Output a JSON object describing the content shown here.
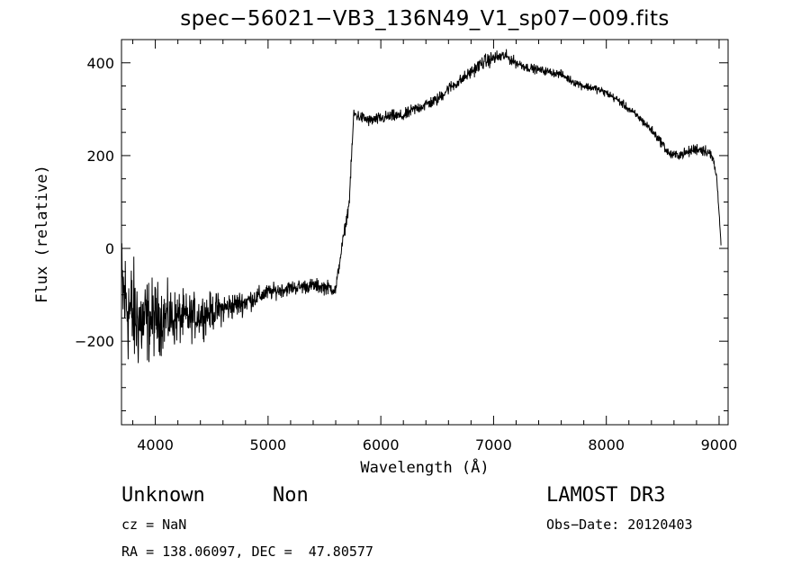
{
  "chart_data": {
    "type": "line",
    "title": "spec−56021−VB3_136N49_V1_sp07−009.fits",
    "xlabel": "Wavelength (Å)",
    "ylabel": "Flux (relative)",
    "xlim": [
      3700,
      9080
    ],
    "ylim": [
      -380,
      450
    ],
    "x_ticks": [
      4000,
      5000,
      6000,
      7000,
      8000,
      9000
    ],
    "y_ticks": [
      -200,
      0,
      200,
      400
    ],
    "grid": false,
    "series": [
      {
        "x": [
          3700,
          3780,
          3880,
          4000,
          4150,
          4300,
          4450,
          4600,
          4800,
          5000,
          5200,
          5400,
          5550,
          5600,
          5640,
          5680,
          5720,
          5760,
          5800,
          5900,
          6000,
          6100,
          6200,
          6300,
          6400,
          6500,
          6600,
          6700,
          6800,
          6900,
          7000,
          7100,
          7200,
          7300,
          7400,
          7500,
          7600,
          7700,
          7800,
          7900,
          8000,
          8100,
          8200,
          8300,
          8400,
          8500,
          8550,
          8600,
          8700,
          8800,
          8900,
          8950,
          8980,
          9000,
          9020
        ],
        "y": [
          -90,
          -140,
          -160,
          -150,
          -150,
          -150,
          -140,
          -130,
          -115,
          -95,
          -85,
          -80,
          -85,
          -90,
          -20,
          40,
          100,
          290,
          285,
          275,
          280,
          285,
          285,
          300,
          310,
          320,
          345,
          360,
          380,
          400,
          410,
          415,
          400,
          390,
          385,
          380,
          375,
          360,
          350,
          345,
          335,
          320,
          300,
          280,
          255,
          225,
          205,
          200,
          205,
          215,
          210,
          190,
          150,
          80,
          -5
        ],
        "noise": [
          110,
          110,
          90,
          70,
          55,
          45,
          38,
          30,
          22,
          16,
          14,
          14,
          14,
          12,
          12,
          12,
          12,
          12,
          12,
          12,
          12,
          12,
          12,
          12,
          12,
          12,
          12,
          12,
          12,
          14,
          14,
          12,
          10,
          9,
          8,
          8,
          8,
          8,
          8,
          8,
          8,
          8,
          8,
          8,
          9,
          9,
          10,
          10,
          10,
          12,
          12,
          12,
          10,
          6,
          4
        ]
      }
    ]
  },
  "annotations": {
    "object_class": "Unknown",
    "object_subclass": "Non",
    "survey": "LAMOST DR3",
    "redshift": "cz = NaN",
    "obs_date": "Obs−Date: 20120403",
    "coords": "RA = 138.06097, DEC =  47.80577"
  }
}
